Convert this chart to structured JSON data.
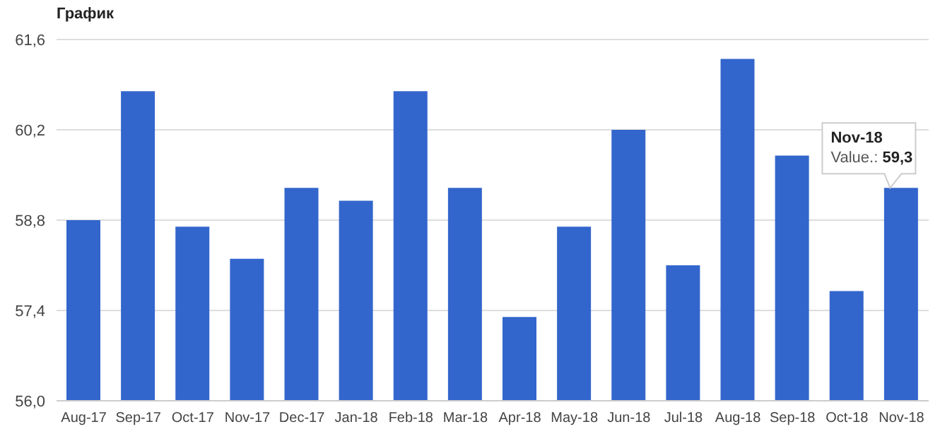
{
  "chart_data": {
    "type": "bar",
    "title": "График",
    "categories": [
      "Aug-17",
      "Sep-17",
      "Oct-17",
      "Nov-17",
      "Dec-17",
      "Jan-18",
      "Feb-18",
      "Mar-18",
      "Apr-18",
      "May-18",
      "Jun-18",
      "Jul-18",
      "Aug-18",
      "Sep-18",
      "Oct-18",
      "Nov-18"
    ],
    "values": [
      58.8,
      60.8,
      58.7,
      58.2,
      59.3,
      59.1,
      60.8,
      59.3,
      57.3,
      58.7,
      60.2,
      58.1,
      61.3,
      59.8,
      57.7,
      59.3
    ],
    "color": "#3366cc",
    "ylim": [
      56,
      61.6
    ],
    "yticks": [
      {
        "value": 56,
        "label": "56,0"
      },
      {
        "value": 57.4,
        "label": "57,4"
      },
      {
        "value": 58.8,
        "label": "58,8"
      },
      {
        "value": 60.2,
        "label": "60,2"
      },
      {
        "value": 61.6,
        "label": "61,6"
      }
    ],
    "grid": "y",
    "annotations": [
      {
        "text": "Nov-18\nValue.: 59,3",
        "x": "Nov-18",
        "y": 59.3
      }
    ]
  }
}
